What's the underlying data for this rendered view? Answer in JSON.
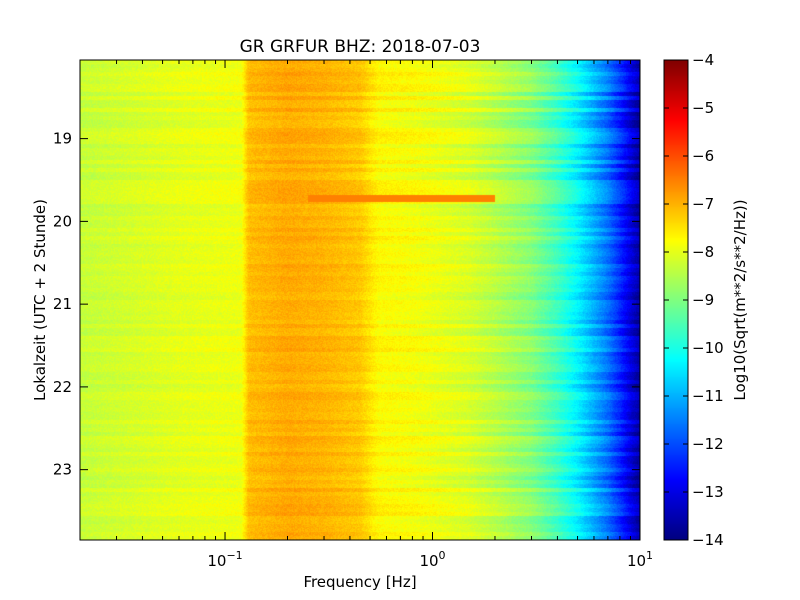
{
  "chart_data": {
    "type": "heatmap",
    "title": "GR GRFUR BHZ: 2018-07-03",
    "xlabel": "Frequency [Hz]",
    "ylabel": "Lokalzeit (UTC + 2 Stunde)",
    "colorbar_label": "Log10(Sqrt(m**2/s**2/Hz))",
    "x_scale": "log",
    "xlim": [
      0.02,
      10
    ],
    "x_ticks": [
      0.1,
      1,
      10
    ],
    "x_tick_labels": [
      {
        "base": "10",
        "exp": "−1"
      },
      {
        "base": "10",
        "exp": "0"
      },
      {
        "base": "10",
        "exp": "1"
      }
    ],
    "ylim": [
      18.05,
      23.85
    ],
    "y_inverted": true,
    "y_ticks": [
      19,
      20,
      21,
      22,
      23
    ],
    "y_tick_labels": [
      "19",
      "20",
      "21",
      "22",
      "23"
    ],
    "colorbar_range": [
      -14,
      -4
    ],
    "colorbar_ticks": [
      -4,
      -5,
      -6,
      -7,
      -8,
      -9,
      -10,
      -11,
      -12,
      -13,
      -14
    ],
    "colorbar_tick_labels": [
      "−4",
      "−5",
      "−6",
      "−7",
      "−8",
      "−9",
      "−10",
      "−11",
      "−12",
      "−13",
      "−14"
    ],
    "colormap": "jet",
    "spectrum_profile": {
      "frequency_hz": [
        0.02,
        0.06,
        0.12,
        0.13,
        0.2,
        0.3,
        0.45,
        0.55,
        0.8,
        1.0,
        1.5,
        2.0,
        3.0,
        4.0,
        5.0,
        6.0,
        7.0,
        8.0,
        9.0,
        10.0
      ],
      "level": [
        -8.3,
        -8.0,
        -7.9,
        -7.1,
        -6.9,
        -7.0,
        -7.2,
        -7.7,
        -7.8,
        -7.9,
        -8.1,
        -8.4,
        -8.9,
        -9.6,
        -10.3,
        -11.0,
        -11.6,
        -12.3,
        -13.0,
        -13.6
      ]
    },
    "events": [
      {
        "time": 19.72,
        "freq_from_hz": 0.25,
        "freq_to_hz": 2.0,
        "level": -6.5
      }
    ]
  }
}
